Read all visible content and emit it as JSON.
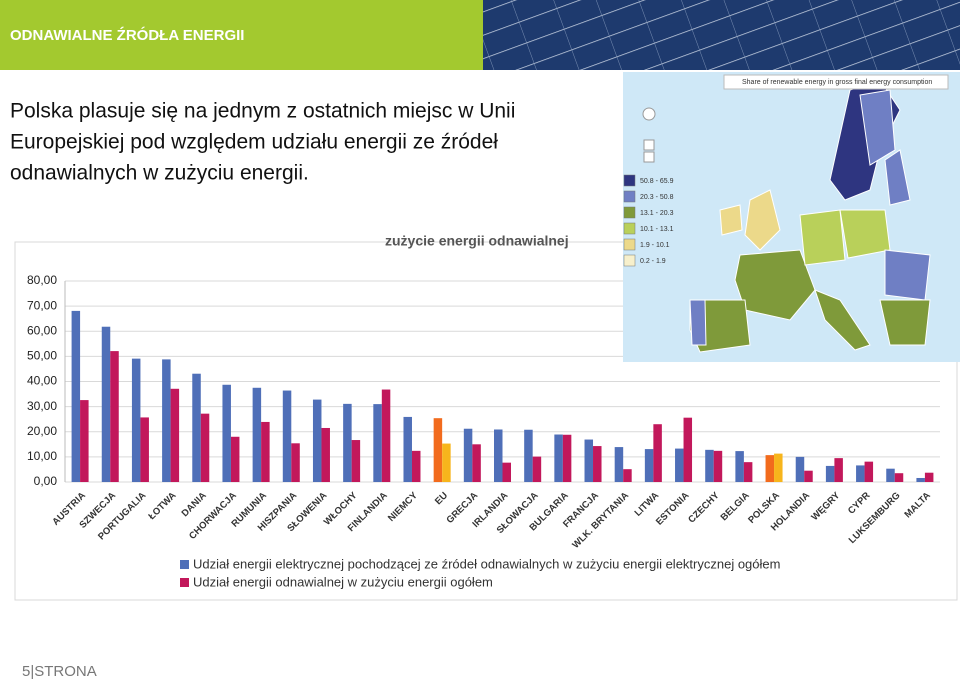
{
  "header": {
    "title": "ODNAWIALNE ŹRÓDŁA ENERGII"
  },
  "body": {
    "lines": [
      "Polska plasuje się na jednym z ostatnich miejsc w Unii",
      "Europejskiej pod względem udziału energii ze źródeł",
      "odnawialnych w zużyciu energii."
    ]
  },
  "map": {
    "title": "Share of renewable energy in gross final energy consumption",
    "legend": [
      {
        "label": "50.8 - 65.9",
        "color": "#2e3580"
      },
      {
        "label": "20.3 - 50.8",
        "color": "#6f7fc4"
      },
      {
        "label": "13.1 - 20.3",
        "color": "#7f9a3a"
      },
      {
        "label": "10.1 - 13.1",
        "color": "#b9d05a"
      },
      {
        "label": "1.9 - 10.1",
        "color": "#ecd98a"
      },
      {
        "label": "0.2 - 1.9",
        "color": "#f7f0cc"
      }
    ]
  },
  "footer": {
    "page": "5|STRONA"
  },
  "chart_data": {
    "type": "bar",
    "title": "zużycie energii odnawialnej",
    "categories": [
      "AUSTRIA",
      "SZWECJA",
      "PORTUGALIA",
      "ŁOTWA",
      "DANIA",
      "CHORWACJA",
      "RUMUNIA",
      "HISZPANIA",
      "SŁOWENIA",
      "WŁOCHY",
      "FINLANDIA",
      "NIEMCY",
      "EU",
      "GRECJA",
      "IRLANDIA",
      "SŁOWACJA",
      "BULGARIA",
      "FRANCJA",
      "WLK. BRYTANIA",
      "LITWA",
      "ESTONIA",
      "CZECHY",
      "BELGIA",
      "POLSKA",
      "HOLANDIA",
      "WĘGRY",
      "CYPR",
      "LUKSEMBURG",
      "MALTA"
    ],
    "series": [
      {
        "name": "Udział energii elektrycznej pochodzącej ze źródeł odnawialnych w zużyciu energii elektrycznej ogółem",
        "color": "#4f6fb8",
        "values": [
          68.1,
          61.8,
          49.1,
          48.8,
          43.1,
          38.7,
          37.5,
          36.4,
          32.8,
          31.1,
          31.0,
          25.9,
          25.4,
          21.2,
          20.9,
          20.8,
          18.9,
          16.9,
          13.9,
          13.1,
          13.3,
          12.8,
          12.3,
          10.7,
          10.0,
          6.4,
          6.6,
          5.3,
          1.6
        ],
        "colors": [
          "#4f6fb8",
          "#4f6fb8",
          "#4f6fb8",
          "#4f6fb8",
          "#4f6fb8",
          "#4f6fb8",
          "#4f6fb8",
          "#4f6fb8",
          "#4f6fb8",
          "#4f6fb8",
          "#4f6fb8",
          "#4f6fb8",
          "#f26b1d",
          "#4f6fb8",
          "#4f6fb8",
          "#4f6fb8",
          "#4f6fb8",
          "#4f6fb8",
          "#4f6fb8",
          "#4f6fb8",
          "#4f6fb8",
          "#4f6fb8",
          "#4f6fb8",
          "#f26b1d",
          "#4f6fb8",
          "#4f6fb8",
          "#4f6fb8",
          "#4f6fb8",
          "#4f6fb8"
        ]
      },
      {
        "name": "Udział energii odnawialnej w zużyciu energii ogółem",
        "color": "#c2185b",
        "values": [
          32.6,
          52.1,
          25.7,
          37.1,
          27.2,
          18.0,
          23.9,
          15.4,
          21.5,
          16.7,
          36.8,
          12.4,
          15.3,
          15.0,
          7.7,
          10.1,
          18.8,
          14.3,
          5.1,
          23.0,
          25.6,
          12.4,
          7.9,
          11.3,
          4.5,
          9.5,
          8.1,
          3.5,
          3.7
        ],
        "colors": [
          "#c2185b",
          "#c2185b",
          "#c2185b",
          "#c2185b",
          "#c2185b",
          "#c2185b",
          "#c2185b",
          "#c2185b",
          "#c2185b",
          "#c2185b",
          "#c2185b",
          "#c2185b",
          "#f7b51c",
          "#c2185b",
          "#c2185b",
          "#c2185b",
          "#c2185b",
          "#c2185b",
          "#c2185b",
          "#c2185b",
          "#c2185b",
          "#c2185b",
          "#c2185b",
          "#f7b51c",
          "#c2185b",
          "#c2185b",
          "#c2185b",
          "#c2185b",
          "#c2185b"
        ]
      }
    ],
    "ylim": [
      0,
      80
    ],
    "yticks": [
      {
        "value": 0,
        "label": "0,00"
      },
      {
        "value": 10,
        "label": "10,00"
      },
      {
        "value": 20,
        "label": "20,00"
      },
      {
        "value": 30,
        "label": "30,00"
      },
      {
        "value": 40,
        "label": "40,00"
      },
      {
        "value": 50,
        "label": "50,00"
      },
      {
        "value": 60,
        "label": "60,00"
      },
      {
        "value": 70,
        "label": "70,00"
      },
      {
        "value": 80,
        "label": "80,00"
      }
    ],
    "grid": true
  }
}
